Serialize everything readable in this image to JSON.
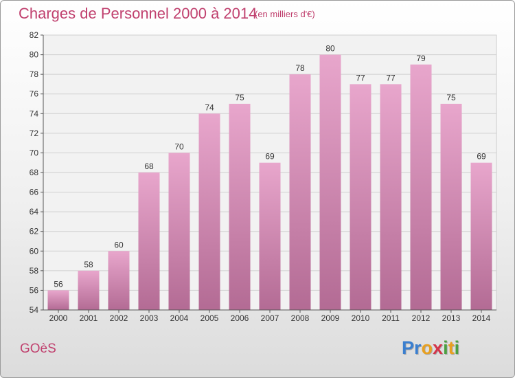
{
  "chart_data": {
    "type": "bar",
    "title": "Charges de Personnel 2000 à 2014",
    "subtitle": "(en milliers d'€)",
    "categories": [
      "2000",
      "2001",
      "2002",
      "2003",
      "2004",
      "2005",
      "2006",
      "2007",
      "2008",
      "2009",
      "2010",
      "2011",
      "2012",
      "2013",
      "2014"
    ],
    "values": [
      56,
      58,
      60,
      68,
      70,
      74,
      75,
      69,
      78,
      80,
      77,
      77,
      79,
      75,
      69
    ],
    "xlabel": "",
    "ylabel": "",
    "ylim": [
      54,
      82
    ],
    "yticks": [
      54,
      56,
      58,
      60,
      62,
      64,
      66,
      68,
      70,
      72,
      74,
      76,
      78,
      80,
      82
    ],
    "grid": true,
    "bar_color_top": "#e8a6cc",
    "bar_color_bottom": "#b36b94"
  },
  "footer": {
    "commune": "GOèS",
    "logo_letters": [
      {
        "ch": "P",
        "color": "#3a7fd0"
      },
      {
        "ch": "r",
        "color": "#3a7fd0"
      },
      {
        "ch": "o",
        "color": "#e8a020"
      },
      {
        "ch": "x",
        "color": "#d4344a"
      },
      {
        "ch": "i",
        "color": "#4aa040"
      },
      {
        "ch": "t",
        "color": "#e8a020"
      },
      {
        "ch": "i",
        "color": "#4aa040"
      }
    ]
  }
}
